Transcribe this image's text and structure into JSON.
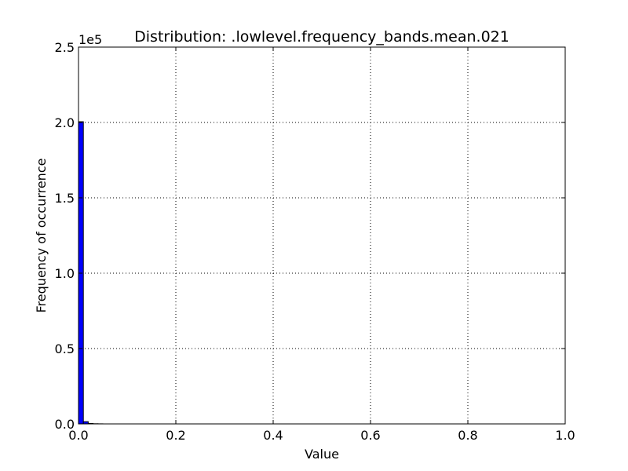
{
  "chart_data": {
    "type": "bar",
    "title": "Distribution: .lowlevel.frequency_bands.mean.021",
    "xlabel": "Value",
    "ylabel": "Frequency of occurrence",
    "y_offset_label": "1e5",
    "xlim": [
      0.0,
      1.0
    ],
    "ylim": [
      0,
      250000
    ],
    "x_ticks": [
      0.0,
      0.2,
      0.4,
      0.6,
      0.8,
      1.0
    ],
    "x_tick_labels": [
      "0.0",
      "0.2",
      "0.4",
      "0.6",
      "0.8",
      "1.0"
    ],
    "y_ticks": [
      0,
      50000,
      100000,
      150000,
      200000,
      250000
    ],
    "y_tick_labels": [
      "0.0",
      "0.5",
      "1.0",
      "1.5",
      "2.0",
      "2.5"
    ],
    "grid": true,
    "bar_color": "#0000ff",
    "bin_width": 0.01,
    "bins": [
      {
        "x0": 0.0,
        "count": 200500
      },
      {
        "x0": 0.01,
        "count": 1500
      },
      {
        "x0": 0.02,
        "count": 300
      },
      {
        "x0": 0.03,
        "count": 100
      },
      {
        "x0": 0.04,
        "count": 50
      }
    ]
  }
}
